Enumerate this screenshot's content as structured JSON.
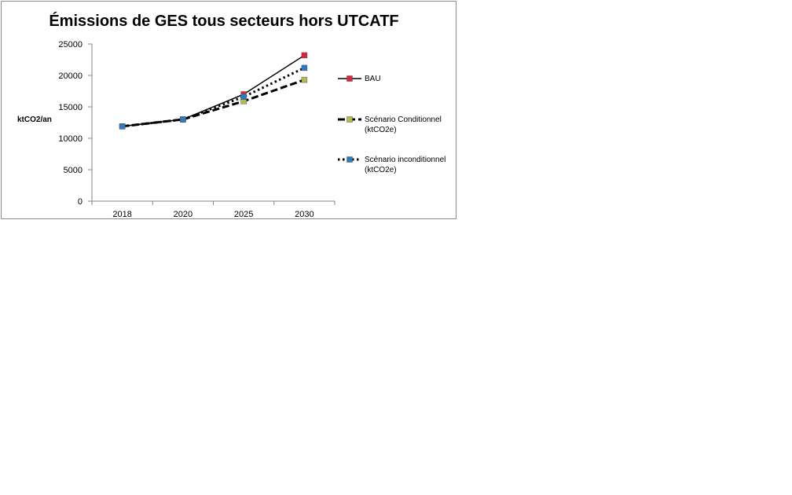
{
  "chart_data": {
    "type": "line",
    "title": "Émissions de GES tous secteurs hors UTCATF",
    "ylabel": "ktCO2/an",
    "xlabel": "",
    "categories": [
      "2018",
      "2020",
      "2025",
      "2030"
    ],
    "ylim": [
      0,
      25000
    ],
    "yticks": [
      "0",
      "5000",
      "10000",
      "15000",
      "20000",
      "25000"
    ],
    "grid": false,
    "legend_position": "right",
    "series": [
      {
        "name": "BAU",
        "values": [
          11900,
          13000,
          17000,
          23200
        ],
        "line_style": "solid",
        "marker_color": "#e2213a"
      },
      {
        "name": "Scénario Conditionnel",
        "name_line2": "(ktCO2e)",
        "values": [
          11900,
          13000,
          15900,
          19300
        ],
        "line_style": "dashed",
        "marker_color": "#b6b94c"
      },
      {
        "name": "Scénario inconditionnel",
        "name_line2": "(ktCO2e)",
        "values": [
          11900,
          13000,
          16600,
          21200
        ],
        "line_style": "dotted",
        "marker_color": "#2a7bbf"
      }
    ]
  }
}
